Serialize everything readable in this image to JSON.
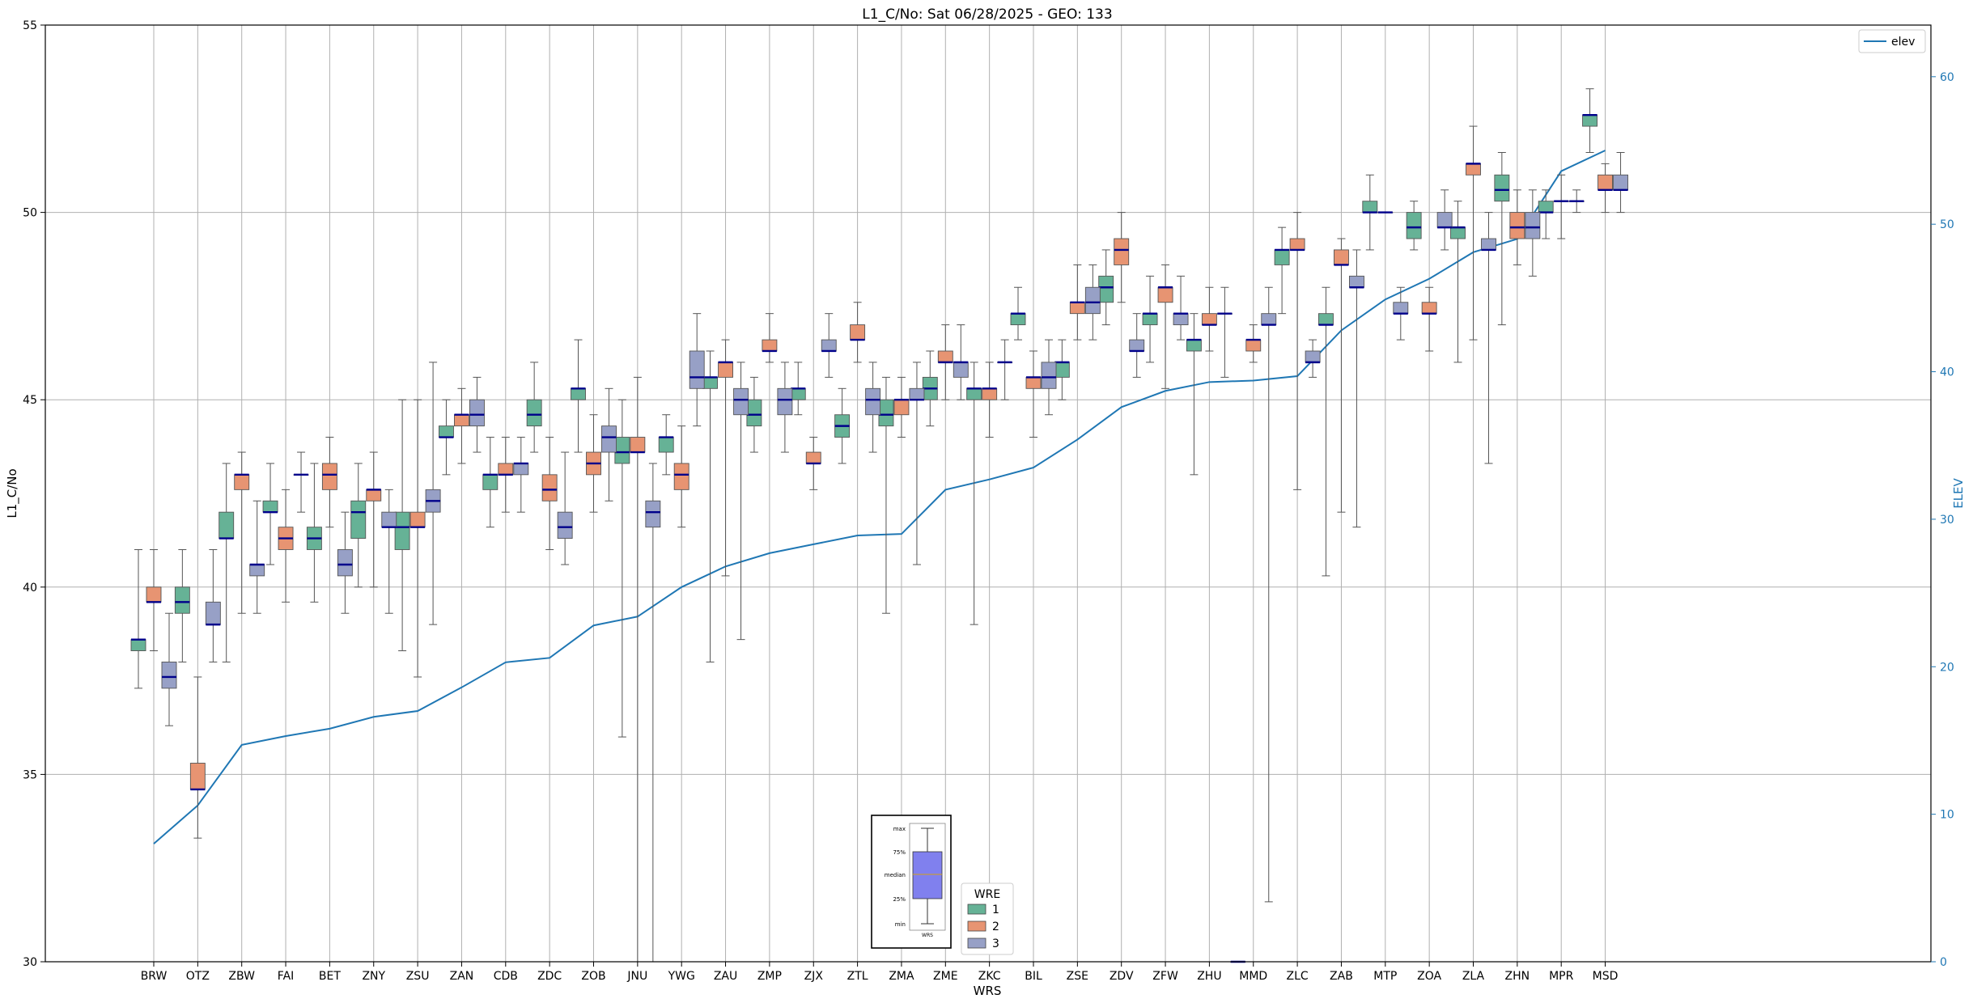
{
  "chart_data": {
    "type": "box",
    "title": "L1_C/No: Sat 06/28/2025 - GEO: 133",
    "xlabel": "WRS",
    "ylabel": "L1_C/No",
    "y2label": "ELEV",
    "ylim": [
      30,
      55
    ],
    "y2lim": [
      0,
      63.5
    ],
    "yticks": [
      30,
      35,
      40,
      45,
      50,
      55
    ],
    "y2ticks": [
      0,
      10,
      20,
      30,
      40,
      50,
      60
    ],
    "grid": true,
    "categories": [
      "BRW",
      "OTZ",
      "ZBW",
      "FAI",
      "BET",
      "ZNY",
      "ZSU",
      "ZAN",
      "CDB",
      "ZDC",
      "ZOB",
      "JNU",
      "YWG",
      "ZAU",
      "ZMP",
      "ZJX",
      "ZTL",
      "ZMA",
      "ZME",
      "ZKC",
      "BIL",
      "ZSE",
      "ZDV",
      "ZFW",
      "ZHU",
      "MMD",
      "ZLC",
      "ZAB",
      "MTP",
      "ZOA",
      "ZLA",
      "ZHN",
      "MPR",
      "MSD"
    ],
    "legend_title": "WRE",
    "series": [
      {
        "name": "1",
        "color": "#66b296",
        "boxes": [
          {
            "min": 37.3,
            "q1": 38.3,
            "median": 38.6,
            "q3": 38.6,
            "max": 41.0
          },
          {
            "min": 38.0,
            "q1": 39.3,
            "median": 39.6,
            "q3": 40.0,
            "max": 41.0
          },
          {
            "min": 38.0,
            "q1": 41.3,
            "median": 41.3,
            "q3": 42.0,
            "max": 43.3
          },
          {
            "min": 40.6,
            "q1": 42.0,
            "median": 42.0,
            "q3": 42.3,
            "max": 43.3
          },
          {
            "min": 39.6,
            "q1": 41.0,
            "median": 41.3,
            "q3": 41.6,
            "max": 43.3
          },
          {
            "min": 40.0,
            "q1": 41.3,
            "median": 42.0,
            "q3": 42.3,
            "max": 43.3
          },
          {
            "min": 38.3,
            "q1": 41.0,
            "median": 41.6,
            "q3": 42.0,
            "max": 45.0
          },
          {
            "min": 43.0,
            "q1": 44.0,
            "median": 44.0,
            "q3": 44.3,
            "max": 45.0
          },
          {
            "min": 41.6,
            "q1": 42.6,
            "median": 43.0,
            "q3": 43.0,
            "max": 44.0
          },
          {
            "min": 43.6,
            "q1": 44.3,
            "median": 44.6,
            "q3": 45.0,
            "max": 46.0
          },
          {
            "min": 43.6,
            "q1": 45.0,
            "median": 45.3,
            "q3": 45.3,
            "max": 46.6
          },
          {
            "min": 36.0,
            "q1": 43.3,
            "median": 43.6,
            "q3": 44.0,
            "max": 45.0
          },
          {
            "min": 43.0,
            "q1": 43.6,
            "median": 44.0,
            "q3": 44.0,
            "max": 44.6
          },
          {
            "min": 38.0,
            "q1": 45.3,
            "median": 45.6,
            "q3": 45.6,
            "max": 46.3
          },
          {
            "min": 43.6,
            "q1": 44.3,
            "median": 44.6,
            "q3": 45.0,
            "max": 45.6
          },
          {
            "min": 44.6,
            "q1": 45.0,
            "median": 45.3,
            "q3": 45.3,
            "max": 46.0
          },
          {
            "min": 43.3,
            "q1": 44.0,
            "median": 44.3,
            "q3": 44.6,
            "max": 45.3
          },
          {
            "min": 39.3,
            "q1": 44.3,
            "median": 44.6,
            "q3": 45.0,
            "max": 45.6
          },
          {
            "min": 44.3,
            "q1": 45.0,
            "median": 45.3,
            "q3": 45.6,
            "max": 46.3
          },
          {
            "min": 39.0,
            "q1": 45.0,
            "median": 45.3,
            "q3": 45.3,
            "max": 46.0
          },
          {
            "min": 46.6,
            "q1": 47.0,
            "median": 47.3,
            "q3": 47.3,
            "max": 48.0
          },
          {
            "min": 45.0,
            "q1": 45.6,
            "median": 46.0,
            "q3": 46.0,
            "max": 46.6
          },
          {
            "min": 47.0,
            "q1": 47.6,
            "median": 48.0,
            "q3": 48.3,
            "max": 49.0
          },
          {
            "min": 46.0,
            "q1": 47.0,
            "median": 47.3,
            "q3": 47.3,
            "max": 48.3
          },
          {
            "min": 43.0,
            "q1": 46.3,
            "median": 46.6,
            "q3": 46.6,
            "max": 47.3
          },
          {
            "min": 30.0,
            "q1": 30.0,
            "median": 30.0,
            "q3": 30.0,
            "max": 30.0
          },
          {
            "min": 47.3,
            "q1": 48.6,
            "median": 49.0,
            "q3": 49.0,
            "max": 49.6
          },
          {
            "min": 40.3,
            "q1": 47.0,
            "median": 47.0,
            "q3": 47.3,
            "max": 48.0
          },
          {
            "min": 49.0,
            "q1": 50.0,
            "median": 50.0,
            "q3": 50.3,
            "max": 51.0
          },
          {
            "min": 49.0,
            "q1": 49.3,
            "median": 49.6,
            "q3": 50.0,
            "max": 50.3
          },
          {
            "min": 46.0,
            "q1": 49.3,
            "median": 49.6,
            "q3": 49.6,
            "max": 50.3
          },
          {
            "min": 47.0,
            "q1": 50.3,
            "median": 50.6,
            "q3": 51.0,
            "max": 51.6
          },
          {
            "min": 49.3,
            "q1": 50.0,
            "median": 50.0,
            "q3": 50.3,
            "max": 50.6
          },
          {
            "min": 51.6,
            "q1": 52.3,
            "median": 52.6,
            "q3": 52.6,
            "max": 53.3
          }
        ]
      },
      {
        "name": "2",
        "color": "#e79472",
        "boxes": [
          {
            "min": 38.3,
            "q1": 39.6,
            "median": 39.6,
            "q3": 40.0,
            "max": 41.0
          },
          {
            "min": 33.3,
            "q1": 34.6,
            "median": 34.6,
            "q3": 35.3,
            "max": 37.6
          },
          {
            "min": 39.3,
            "q1": 42.6,
            "median": 43.0,
            "q3": 43.0,
            "max": 43.6
          },
          {
            "min": 39.6,
            "q1": 41.0,
            "median": 41.3,
            "q3": 41.6,
            "max": 42.6
          },
          {
            "min": 41.6,
            "q1": 42.6,
            "median": 43.0,
            "q3": 43.3,
            "max": 44.0
          },
          {
            "min": 40.0,
            "q1": 42.3,
            "median": 42.6,
            "q3": 42.6,
            "max": 43.6
          },
          {
            "min": 37.6,
            "q1": 41.6,
            "median": 41.6,
            "q3": 42.0,
            "max": 45.0
          },
          {
            "min": 43.3,
            "q1": 44.3,
            "median": 44.6,
            "q3": 44.6,
            "max": 45.3
          },
          {
            "min": 42.0,
            "q1": 43.0,
            "median": 43.0,
            "q3": 43.3,
            "max": 44.0
          },
          {
            "min": 41.0,
            "q1": 42.3,
            "median": 42.6,
            "q3": 43.0,
            "max": 44.0
          },
          {
            "min": 42.0,
            "q1": 43.0,
            "median": 43.3,
            "q3": 43.6,
            "max": 44.6
          },
          {
            "min": 30.0,
            "q1": 43.6,
            "median": 43.6,
            "q3": 44.0,
            "max": 45.6
          },
          {
            "min": 41.6,
            "q1": 42.6,
            "median": 43.0,
            "q3": 43.3,
            "max": 44.3
          },
          {
            "min": 40.3,
            "q1": 45.6,
            "median": 46.0,
            "q3": 46.0,
            "max": 46.6
          },
          {
            "min": 46.0,
            "q1": 46.3,
            "median": 46.3,
            "q3": 46.6,
            "max": 47.3
          },
          {
            "min": 42.6,
            "q1": 43.3,
            "median": 43.3,
            "q3": 43.6,
            "max": 44.0
          },
          {
            "min": 46.0,
            "q1": 46.6,
            "median": 46.6,
            "q3": 47.0,
            "max": 47.6
          },
          {
            "min": 44.0,
            "q1": 44.6,
            "median": 45.0,
            "q3": 45.0,
            "max": 45.6
          },
          {
            "min": 45.0,
            "q1": 46.0,
            "median": 46.0,
            "q3": 46.3,
            "max": 47.0
          },
          {
            "min": 44.0,
            "q1": 45.0,
            "median": 45.3,
            "q3": 45.3,
            "max": 46.0
          },
          {
            "min": 44.0,
            "q1": 45.3,
            "median": 45.6,
            "q3": 45.6,
            "max": 46.3
          },
          {
            "min": 46.6,
            "q1": 47.3,
            "median": 47.6,
            "q3": 47.6,
            "max": 48.6
          },
          {
            "min": 47.6,
            "q1": 48.6,
            "median": 49.0,
            "q3": 49.3,
            "max": 50.0
          },
          {
            "min": 45.3,
            "q1": 47.6,
            "median": 48.0,
            "q3": 48.0,
            "max": 48.6
          },
          {
            "min": 46.3,
            "q1": 47.0,
            "median": 47.0,
            "q3": 47.3,
            "max": 48.0
          },
          {
            "min": 46.0,
            "q1": 46.3,
            "median": 46.6,
            "q3": 46.6,
            "max": 47.0
          },
          {
            "min": 42.6,
            "q1": 49.0,
            "median": 49.0,
            "q3": 49.3,
            "max": 50.0
          },
          {
            "min": 42.0,
            "q1": 48.6,
            "median": 48.6,
            "q3": 49.0,
            "max": 49.3
          },
          {
            "min": 50.0,
            "q1": 50.0,
            "median": 50.0,
            "q3": 50.0,
            "max": 50.0
          },
          {
            "min": 46.3,
            "q1": 47.3,
            "median": 47.3,
            "q3": 47.6,
            "max": 48.0
          },
          {
            "min": 46.6,
            "q1": 51.0,
            "median": 51.3,
            "q3": 51.3,
            "max": 52.3
          },
          {
            "min": 48.6,
            "q1": 49.3,
            "median": 49.6,
            "q3": 50.0,
            "max": 50.6
          },
          {
            "min": 49.3,
            "q1": 50.3,
            "median": 50.3,
            "q3": 50.3,
            "max": 51.0
          },
          {
            "min": 50.0,
            "q1": 50.6,
            "median": 50.6,
            "q3": 51.0,
            "max": 51.3
          }
        ]
      },
      {
        "name": "3",
        "color": "#97a0c6",
        "boxes": [
          {
            "min": 36.3,
            "q1": 37.3,
            "median": 37.6,
            "q3": 38.0,
            "max": 39.3
          },
          {
            "min": 38.0,
            "q1": 39.0,
            "median": 39.0,
            "q3": 39.6,
            "max": 41.0
          },
          {
            "min": 39.3,
            "q1": 40.3,
            "median": 40.6,
            "q3": 40.6,
            "max": 42.3
          },
          {
            "min": 42.0,
            "q1": 43.0,
            "median": 43.0,
            "q3": 43.0,
            "max": 43.6
          },
          {
            "min": 39.3,
            "q1": 40.3,
            "median": 40.6,
            "q3": 41.0,
            "max": 42.0
          },
          {
            "min": 39.3,
            "q1": 41.6,
            "median": 41.6,
            "q3": 42.0,
            "max": 42.6
          },
          {
            "min": 39.0,
            "q1": 42.0,
            "median": 42.3,
            "q3": 42.6,
            "max": 46.0
          },
          {
            "min": 43.6,
            "q1": 44.3,
            "median": 44.6,
            "q3": 45.0,
            "max": 45.6
          },
          {
            "min": 42.0,
            "q1": 43.0,
            "median": 43.3,
            "q3": 43.3,
            "max": 44.0
          },
          {
            "min": 40.6,
            "q1": 41.3,
            "median": 41.6,
            "q3": 42.0,
            "max": 43.6
          },
          {
            "min": 42.3,
            "q1": 43.6,
            "median": 44.0,
            "q3": 44.3,
            "max": 45.3
          },
          {
            "min": 30.0,
            "q1": 41.6,
            "median": 42.0,
            "q3": 42.3,
            "max": 43.3
          },
          {
            "min": 44.3,
            "q1": 45.3,
            "median": 45.6,
            "q3": 46.3,
            "max": 47.3
          },
          {
            "min": 38.6,
            "q1": 44.6,
            "median": 45.0,
            "q3": 45.3,
            "max": 46.0
          },
          {
            "min": 43.6,
            "q1": 44.6,
            "median": 45.0,
            "q3": 45.3,
            "max": 46.0
          },
          {
            "min": 45.6,
            "q1": 46.3,
            "median": 46.3,
            "q3": 46.6,
            "max": 47.3
          },
          {
            "min": 43.6,
            "q1": 44.6,
            "median": 45.0,
            "q3": 45.3,
            "max": 46.0
          },
          {
            "min": 40.6,
            "q1": 45.0,
            "median": 45.0,
            "q3": 45.3,
            "max": 46.0
          },
          {
            "min": 45.0,
            "q1": 45.6,
            "median": 46.0,
            "q3": 46.0,
            "max": 47.0
          },
          {
            "min": 45.0,
            "q1": 46.0,
            "median": 46.0,
            "q3": 46.0,
            "max": 46.6
          },
          {
            "min": 44.6,
            "q1": 45.3,
            "median": 45.6,
            "q3": 46.0,
            "max": 46.6
          },
          {
            "min": 46.6,
            "q1": 47.3,
            "median": 47.6,
            "q3": 48.0,
            "max": 48.6
          },
          {
            "min": 45.6,
            "q1": 46.3,
            "median": 46.3,
            "q3": 46.6,
            "max": 47.3
          },
          {
            "min": 46.6,
            "q1": 47.0,
            "median": 47.3,
            "q3": 47.3,
            "max": 48.3
          },
          {
            "min": 45.6,
            "q1": 47.3,
            "median": 47.3,
            "q3": 47.3,
            "max": 48.0
          },
          {
            "min": 31.6,
            "q1": 47.0,
            "median": 47.0,
            "q3": 47.3,
            "max": 48.0
          },
          {
            "min": 45.6,
            "q1": 46.0,
            "median": 46.0,
            "q3": 46.3,
            "max": 46.6
          },
          {
            "min": 41.6,
            "q1": 48.0,
            "median": 48.0,
            "q3": 48.3,
            "max": 49.0
          },
          {
            "min": 46.6,
            "q1": 47.3,
            "median": 47.3,
            "q3": 47.6,
            "max": 48.0
          },
          {
            "min": 49.0,
            "q1": 49.6,
            "median": 49.6,
            "q3": 50.0,
            "max": 50.6
          },
          {
            "min": 43.3,
            "q1": 49.0,
            "median": 49.0,
            "q3": 49.3,
            "max": 50.0
          },
          {
            "min": 48.3,
            "q1": 49.3,
            "median": 49.6,
            "q3": 50.0,
            "max": 50.6
          },
          {
            "min": 50.0,
            "q1": 50.3,
            "median": 50.3,
            "q3": 50.3,
            "max": 50.6
          },
          {
            "min": 50.0,
            "q1": 50.6,
            "median": 50.6,
            "q3": 51.0,
            "max": 51.6
          }
        ]
      }
    ],
    "line_series": {
      "name": "elev",
      "axis": "y2",
      "color": "#1f77b4",
      "values": [
        8,
        10.6,
        14.7,
        15.3,
        15.8,
        16.6,
        17.0,
        18.6,
        20.3,
        20.6,
        22.8,
        23.4,
        25.4,
        26.8,
        27.7,
        28.3,
        28.9,
        29.0,
        32.0,
        32.7,
        33.5,
        35.4,
        37.6,
        38.7,
        39.3,
        39.4,
        39.7,
        42.8,
        44.9,
        46.3,
        48.1,
        49.0,
        53.6,
        55.0
      ]
    },
    "inset_key": {
      "labels": [
        "max",
        "75%",
        "median",
        "25%",
        "min"
      ],
      "caption": "WRS"
    }
  }
}
